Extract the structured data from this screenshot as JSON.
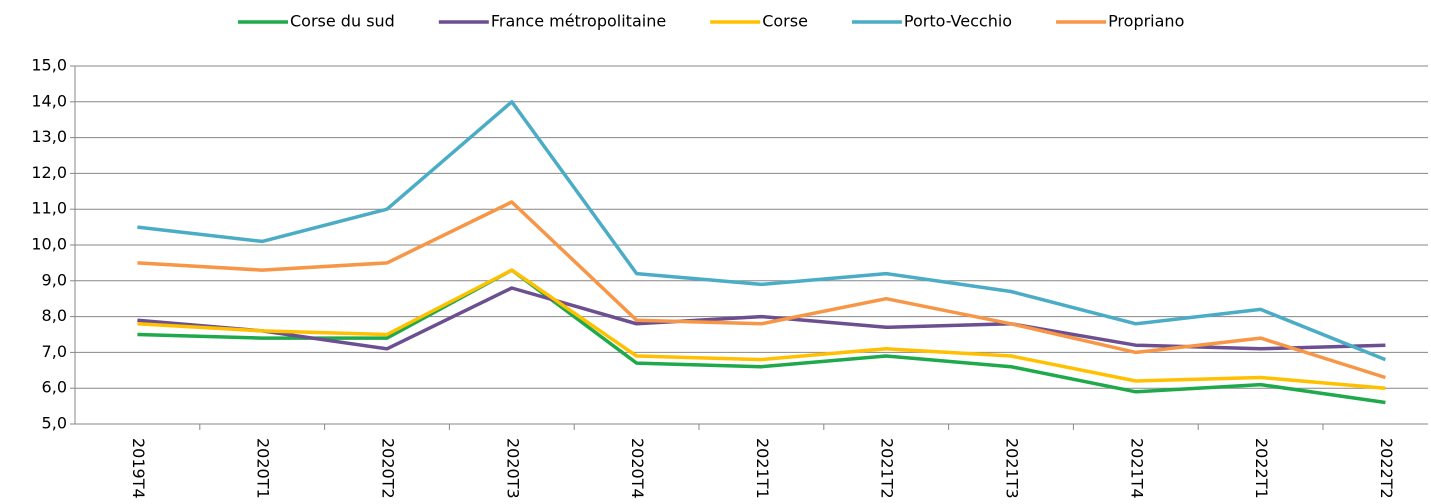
{
  "chart_data": {
    "type": "line",
    "categories": [
      "2019T4",
      "2020T1",
      "2020T2",
      "2020T3",
      "2020T4",
      "2021T1",
      "2021T2",
      "2021T3",
      "2021T4",
      "2022T1",
      "2022T2"
    ],
    "series": [
      {
        "name": "Corse du sud",
        "color": "#1eaa4b",
        "values": [
          7.5,
          7.4,
          7.4,
          9.3,
          6.7,
          6.6,
          6.9,
          6.6,
          5.9,
          6.1,
          5.6
        ]
      },
      {
        "name": "France métropolitaine",
        "color": "#6b4f90",
        "values": [
          7.9,
          7.6,
          7.1,
          8.8,
          7.8,
          8.0,
          7.7,
          7.8,
          7.2,
          7.1,
          7.2
        ]
      },
      {
        "name": "Corse",
        "color": "#ffc000",
        "values": [
          7.8,
          7.6,
          7.5,
          9.3,
          6.9,
          6.8,
          7.1,
          6.9,
          6.2,
          6.3,
          6.0
        ]
      },
      {
        "name": "Porto-Vecchio",
        "color": "#4bacc6",
        "values": [
          10.5,
          10.1,
          11.0,
          14.0,
          9.2,
          8.9,
          9.2,
          8.7,
          7.8,
          8.2,
          6.8
        ]
      },
      {
        "name": "Propriano",
        "color": "#f79646",
        "values": [
          9.5,
          9.3,
          9.5,
          11.2,
          7.9,
          7.8,
          8.5,
          7.8,
          7.0,
          7.4,
          6.3
        ]
      }
    ],
    "ylim": [
      5,
      15
    ],
    "yticks": [
      {
        "value": 5,
        "label": "5,0"
      },
      {
        "value": 6,
        "label": "6,0"
      },
      {
        "value": 7,
        "label": "7,0"
      },
      {
        "value": 8,
        "label": "8,0"
      },
      {
        "value": 9,
        "label": "9,0"
      },
      {
        "value": 10,
        "label": "10,0"
      },
      {
        "value": 11,
        "label": "11,0"
      },
      {
        "value": 12,
        "label": "12,0"
      },
      {
        "value": 13,
        "label": "13,0"
      },
      {
        "value": 14,
        "label": "14,0"
      },
      {
        "value": 15,
        "label": "15,0"
      }
    ],
    "grid": true,
    "legend": "top"
  }
}
